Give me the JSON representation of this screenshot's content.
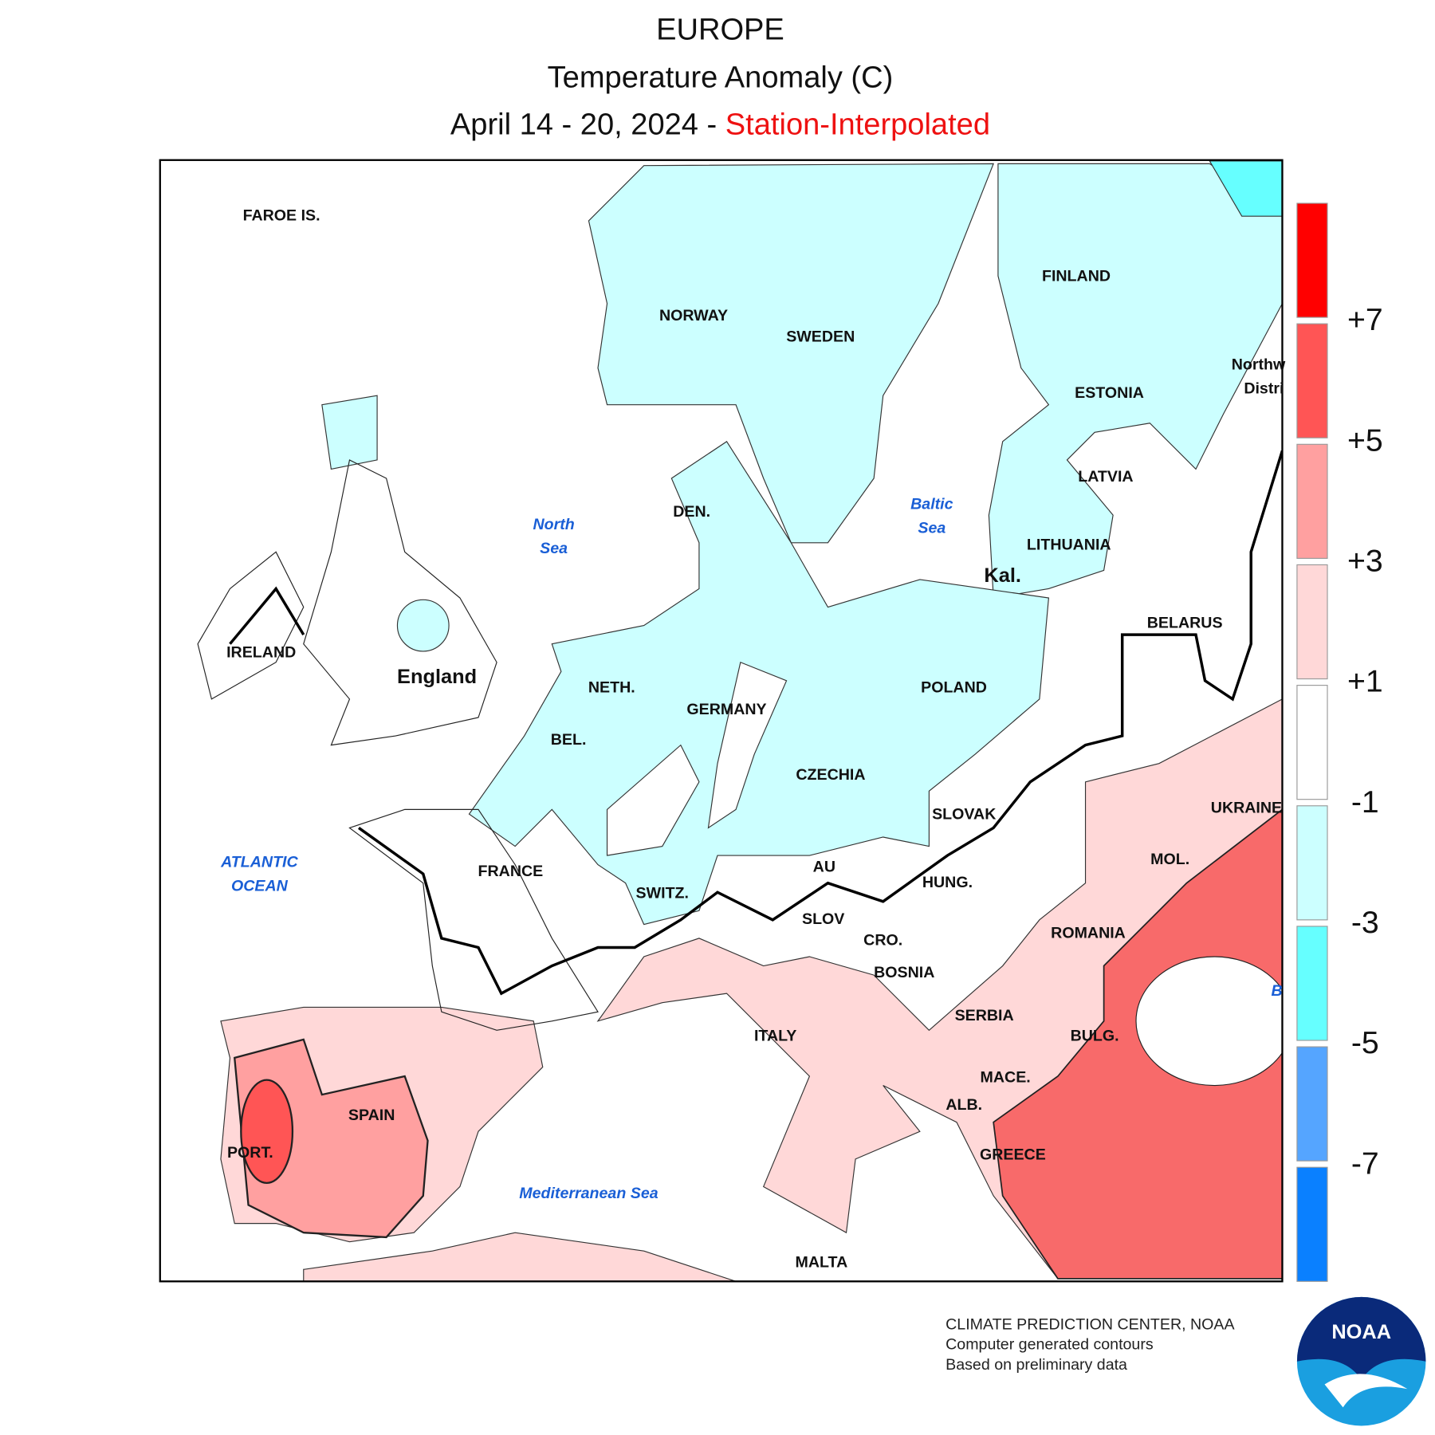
{
  "header": {
    "title": "EUROPE",
    "subtitle": "Temperature Anomaly (C)",
    "dates": "April 14 - 20, 2024 -",
    "method": "Station-Interpolated"
  },
  "places": [
    "FAROE IS.",
    "NORWAY",
    "SWEDEN",
    "FINLAND",
    "Northw",
    "Distri",
    "ESTONIA",
    "LATVIA",
    "LITHUANIA",
    "Kal.",
    "DEN.",
    "BELARUS",
    "IRELAND",
    "England",
    "NETH.",
    "GERMANY",
    "POLAND",
    "BEL.",
    "CZECHIA",
    "UKRAINE",
    "SLOVAK",
    "MOL.",
    "FRANCE",
    "AU",
    "HUNG.",
    "SWITZ.",
    "SLOV",
    "CRO.",
    "ROMANIA",
    "BOSNIA",
    "SERBIA",
    "ITALY",
    "BULG.",
    "MACE.",
    "ALB.",
    "SPAIN",
    "PORT.",
    "GREECE",
    "MALTA"
  ],
  "seas": [
    "North",
    "Sea",
    "Baltic",
    "Sea",
    "ATLANTIC",
    "OCEAN",
    "Mediterranean Sea",
    "B"
  ],
  "legend": [
    "+7",
    "+5",
    "+3",
    "+1",
    "-1",
    "-3",
    "-5",
    "-7"
  ],
  "footer": [
    "CLIMATE PREDICTION CENTER, NOAA",
    "Computer generated contours",
    "Based on preliminary data"
  ],
  "logo": "NOAA"
}
